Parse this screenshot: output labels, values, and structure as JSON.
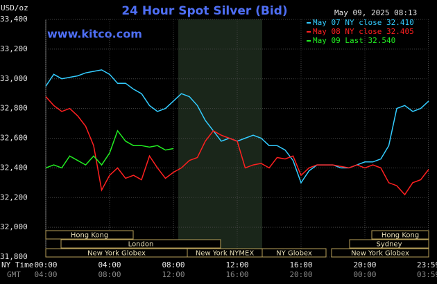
{
  "chart_data": {
    "type": "line",
    "title": "24 Hour Spot Silver (Bid)",
    "timestamp": "May 09, 2025 08:13",
    "website": "www.kitco.com",
    "y_label": "USD/oz",
    "x_label": "NY Time",
    "x2_label": "GMT",
    "xlim": [
      0,
      24
    ],
    "ylim": [
      31.8,
      33.4
    ],
    "grid": true,
    "xticks": [
      {
        "value": 0,
        "label": "00:00"
      },
      {
        "value": 4,
        "label": "04:00"
      },
      {
        "value": 8,
        "label": "08:00"
      },
      {
        "value": 12,
        "label": "12:00"
      },
      {
        "value": 16,
        "label": "16:00"
      },
      {
        "value": 20,
        "label": "20:00"
      },
      {
        "value": 23.98,
        "label": "23:59"
      }
    ],
    "gmt_labels": [
      "04:00",
      "08:00",
      "12:00",
      "16:00",
      "20:00",
      "00:00",
      "03:59"
    ],
    "yticks": [
      {
        "value": 31.8,
        "label": "31,800"
      },
      {
        "value": 32,
        "label": "32,000"
      },
      {
        "value": 32.2,
        "label": "32,200"
      },
      {
        "value": 32.4,
        "label": "32,400"
      },
      {
        "value": 32.6,
        "label": "32,600"
      },
      {
        "value": 32.8,
        "label": "32,800"
      },
      {
        "value": 33,
        "label": "33,000"
      },
      {
        "value": 33.2,
        "label": "33,200"
      },
      {
        "value": 33.4,
        "label": "33,400"
      }
    ],
    "sessions": [
      "Hong Kong",
      "London",
      "New York Globex",
      "New York NYMEX",
      "NY Globex",
      "Hong Kong",
      "Sydney",
      "New York Globex"
    ],
    "x": [
      0,
      0.5,
      1,
      1.5,
      2,
      2.5,
      3,
      3.5,
      4,
      4.5,
      5,
      5.5,
      6,
      6.5,
      7,
      7.5,
      8,
      8.5,
      9,
      9.5,
      10,
      10.5,
      11,
      11.5,
      12,
      12.5,
      13,
      13.5,
      14,
      14.5,
      15,
      15.5,
      16,
      16.5,
      17,
      17.5,
      18,
      18.5,
      19,
      19.5,
      20,
      20.5,
      21,
      21.5,
      22,
      22.5,
      23,
      23.5,
      24
    ],
    "series": [
      {
        "name": "May 07 NY close 32.410",
        "color": "#33ccff",
        "values": [
          32.95,
          33.03,
          33.0,
          33.01,
          33.02,
          33.04,
          33.05,
          33.06,
          33.03,
          32.97,
          32.97,
          32.93,
          32.9,
          32.82,
          32.78,
          32.8,
          32.85,
          32.9,
          32.88,
          32.82,
          32.72,
          32.65,
          32.58,
          32.6,
          32.58,
          32.6,
          32.62,
          32.6,
          32.55,
          32.55,
          32.52,
          32.45,
          32.3,
          32.38,
          32.42,
          32.42,
          32.42,
          32.4,
          32.4,
          32.42,
          32.44,
          32.44,
          32.46,
          32.55,
          32.8,
          32.82,
          32.78,
          32.8,
          32.85
        ]
      },
      {
        "name": "May 08 NY close 32.405",
        "color": "#ff2020",
        "values": [
          32.88,
          32.82,
          32.78,
          32.8,
          32.75,
          32.68,
          32.55,
          32.25,
          32.35,
          32.4,
          32.33,
          32.35,
          32.32,
          32.48,
          32.4,
          32.33,
          32.37,
          32.4,
          32.45,
          32.47,
          32.58,
          32.65,
          32.62,
          32.6,
          32.58,
          32.4,
          32.42,
          32.43,
          32.4,
          32.47,
          32.46,
          32.48,
          32.35,
          32.4,
          32.42,
          32.42,
          32.42,
          32.41,
          32.4,
          32.42,
          32.4,
          32.42,
          32.4,
          32.3,
          32.28,
          32.22,
          32.3,
          32.32,
          32.39
        ]
      },
      {
        "name": "May 09 Last 32.540",
        "color": "#22ee22",
        "values": [
          32.4,
          32.42,
          32.4,
          32.48,
          32.45,
          32.42,
          32.48,
          32.42,
          32.5,
          32.65,
          32.58,
          32.55,
          32.55,
          32.54,
          32.55,
          32.52,
          32.53,
          null,
          null,
          null,
          null,
          null,
          null,
          null,
          null,
          null,
          null,
          null,
          null,
          null,
          null,
          null,
          null,
          null,
          null,
          null,
          null,
          null,
          null,
          null,
          null,
          null,
          null,
          null,
          null,
          null,
          null,
          null,
          null
        ]
      }
    ]
  }
}
